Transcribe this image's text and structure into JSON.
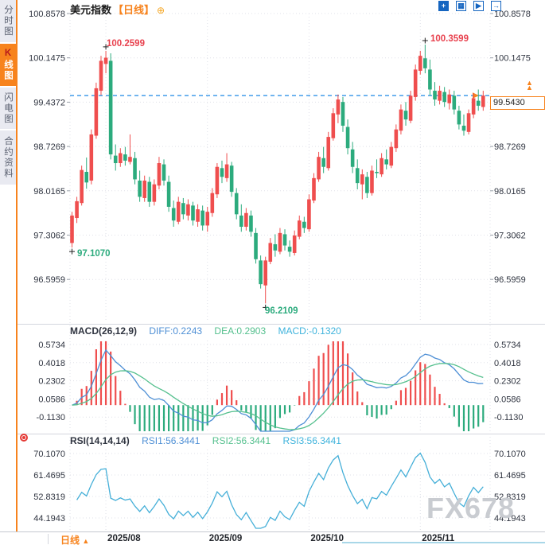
{
  "header": {
    "title": "美元指数",
    "timeframe": "【日线】",
    "add_icon": "⊕"
  },
  "sidebar": {
    "items": [
      {
        "label": "分时图",
        "active": false
      },
      {
        "label": "K线图",
        "active": true
      },
      {
        "label": "闪电图",
        "active": false
      },
      {
        "label": "合约资料",
        "active": false
      }
    ]
  },
  "toolbar": {
    "icons": [
      {
        "name": "crosshair",
        "glyph": "+"
      },
      {
        "name": "measure",
        "glyph": "▦"
      },
      {
        "name": "draw",
        "glyph": "▶"
      },
      {
        "name": "popout",
        "glyph": "→"
      }
    ]
  },
  "price_marker": {
    "value": "99.5430",
    "arrow_up": "▲"
  },
  "macd_header": {
    "name": "MACD(26,12,9)",
    "diff": "DIFF:0.2243",
    "dea": "DEA:0.2903",
    "macd": "MACD:-0.1320"
  },
  "rsi_header": {
    "name": "RSI(14,14,14)",
    "rsi1": "RSI1:56.3441",
    "rsi2": "RSI2:56.3441",
    "rsi3": "RSI3:56.3441"
  },
  "bottom": {
    "timeframe": "日线",
    "arrow": "▲"
  },
  "watermark": "FX678",
  "colors": {
    "up": "#ef4e4e",
    "down": "#2cab7d",
    "annotation_up": "#e8414e",
    "annotation_down": "#2cab7d",
    "accent_orange": "#f7831d",
    "dashed_line": "#1e88e5",
    "diff_line": "#4e8fd5",
    "dea_line": "#55c08e",
    "rsi_line": "#45afd8",
    "grid": "#dfe0e8",
    "axis_text": "#2f3440"
  },
  "chart_data": {
    "type": "candlestick",
    "title": "美元指数 日线",
    "x_labels": [
      "2025/08",
      "2025/09",
      "2025/10",
      "2025/11"
    ],
    "month_start_indices": [
      7,
      28,
      49,
      72
    ],
    "y_axis_labels": [
      100.8578,
      100.1475,
      99.4372,
      98.7269,
      98.0165,
      97.3062,
      96.5959
    ],
    "current_price": 99.543,
    "markers": [
      {
        "index": 7,
        "type": "high",
        "label": "100.2599"
      },
      {
        "index": 0,
        "type": "low",
        "label": "97.1070"
      },
      {
        "index": 40,
        "type": "low",
        "label": "96.2109"
      },
      {
        "index": 73,
        "type": "high",
        "label": "100.3599"
      }
    ],
    "ohlc": [
      [
        97.18,
        97.68,
        97.107,
        97.62
      ],
      [
        97.58,
        97.92,
        97.5,
        97.85
      ],
      [
        97.82,
        98.42,
        97.78,
        98.35
      ],
      [
        98.32,
        98.55,
        98.05,
        98.15
      ],
      [
        98.18,
        99.0,
        98.12,
        98.92
      ],
      [
        98.9,
        99.75,
        98.85,
        99.66
      ],
      [
        99.62,
        100.18,
        99.55,
        100.1
      ],
      [
        100.05,
        100.2599,
        99.9,
        100.15
      ],
      [
        100.1,
        100.22,
        98.52,
        98.6
      ],
      [
        98.58,
        98.76,
        98.34,
        98.46
      ],
      [
        98.46,
        98.7,
        98.4,
        98.62
      ],
      [
        98.6,
        98.72,
        98.42,
        98.5
      ],
      [
        98.48,
        98.92,
        98.44,
        98.56
      ],
      [
        98.54,
        98.64,
        98.12,
        98.2
      ],
      [
        98.18,
        98.34,
        97.84,
        97.92
      ],
      [
        97.9,
        98.26,
        97.84,
        98.18
      ],
      [
        98.16,
        98.24,
        97.76,
        97.84
      ],
      [
        97.84,
        98.2,
        97.78,
        98.12
      ],
      [
        98.1,
        98.56,
        98.04,
        98.46
      ],
      [
        98.44,
        98.52,
        98.1,
        98.18
      ],
      [
        98.16,
        98.26,
        97.68,
        97.76
      ],
      [
        97.74,
        97.86,
        97.44,
        97.54
      ],
      [
        97.52,
        97.92,
        97.48,
        97.84
      ],
      [
        97.82,
        97.9,
        97.56,
        97.64
      ],
      [
        97.62,
        97.88,
        97.54,
        97.8
      ],
      [
        97.78,
        97.84,
        97.46,
        97.54
      ],
      [
        97.52,
        97.8,
        97.44,
        97.72
      ],
      [
        97.7,
        97.78,
        97.38,
        97.46
      ],
      [
        97.46,
        97.76,
        97.36,
        97.68
      ],
      [
        97.66,
        98.06,
        97.6,
        97.98
      ],
      [
        97.96,
        98.46,
        97.9,
        98.4
      ],
      [
        98.38,
        98.5,
        98.14,
        98.24
      ],
      [
        98.22,
        98.62,
        98.16,
        98.44
      ],
      [
        98.42,
        98.48,
        97.92,
        98.0
      ],
      [
        97.98,
        98.06,
        97.56,
        97.64
      ],
      [
        97.62,
        97.8,
        97.36,
        97.44
      ],
      [
        97.44,
        97.74,
        97.38,
        97.66
      ],
      [
        97.62,
        97.7,
        97.28,
        97.36
      ],
      [
        97.34,
        97.42,
        96.85,
        96.92
      ],
      [
        96.9,
        96.98,
        96.45,
        96.52
      ],
      [
        96.5,
        96.96,
        96.2109,
        96.9
      ],
      [
        96.88,
        97.26,
        96.84,
        97.18
      ],
      [
        97.16,
        97.32,
        96.96,
        97.06
      ],
      [
        97.04,
        97.42,
        97.0,
        97.34
      ],
      [
        97.32,
        97.4,
        97.06,
        97.14
      ],
      [
        97.12,
        97.22,
        96.96,
        97.04
      ],
      [
        97.02,
        97.38,
        96.98,
        97.3
      ],
      [
        97.28,
        97.62,
        97.24,
        97.54
      ],
      [
        97.52,
        97.6,
        97.34,
        97.42
      ],
      [
        97.4,
        97.96,
        97.36,
        97.88
      ],
      [
        97.86,
        98.3,
        97.82,
        98.22
      ],
      [
        98.2,
        98.64,
        98.16,
        98.56
      ],
      [
        98.54,
        98.72,
        98.3,
        98.4
      ],
      [
        98.38,
        98.96,
        98.34,
        98.88
      ],
      [
        98.86,
        99.34,
        98.82,
        99.26
      ],
      [
        99.24,
        99.56,
        99.1,
        99.48
      ],
      [
        99.44,
        99.52,
        98.96,
        99.06
      ],
      [
        99.04,
        99.16,
        98.6,
        98.7
      ],
      [
        98.68,
        98.8,
        98.3,
        98.4
      ],
      [
        98.38,
        98.52,
        98.04,
        98.14
      ],
      [
        98.12,
        98.36,
        97.88,
        98.28
      ],
      [
        98.24,
        98.32,
        97.9,
        97.98
      ],
      [
        97.98,
        98.42,
        97.94,
        98.34
      ],
      [
        98.32,
        98.52,
        98.22,
        98.3
      ],
      [
        98.28,
        98.62,
        98.24,
        98.54
      ],
      [
        98.52,
        98.68,
        98.36,
        98.44
      ],
      [
        98.42,
        98.8,
        98.38,
        98.72
      ],
      [
        98.7,
        99.08,
        98.64,
        99.0
      ],
      [
        98.98,
        99.4,
        98.92,
        99.32
      ],
      [
        99.3,
        99.44,
        99.06,
        99.16
      ],
      [
        99.14,
        99.62,
        99.1,
        99.54
      ],
      [
        99.52,
        100.04,
        99.46,
        99.96
      ],
      [
        99.94,
        100.26,
        99.88,
        100.18
      ],
      [
        100.14,
        100.3599,
        99.9,
        99.98
      ],
      [
        99.96,
        100.12,
        99.54,
        99.64
      ],
      [
        99.62,
        99.76,
        99.38,
        99.48
      ],
      [
        99.46,
        99.7,
        99.4,
        99.62
      ],
      [
        99.6,
        99.68,
        99.36,
        99.44
      ],
      [
        99.42,
        99.64,
        99.32,
        99.56
      ],
      [
        99.54,
        99.62,
        99.24,
        99.32
      ],
      [
        99.3,
        99.38,
        99.0,
        99.08
      ],
      [
        99.06,
        99.24,
        98.9,
        98.98
      ],
      [
        98.96,
        99.32,
        98.92,
        99.26
      ],
      [
        99.24,
        99.58,
        99.18,
        99.5
      ],
      [
        99.46,
        99.64,
        99.3,
        99.38
      ],
      [
        99.36,
        99.62,
        99.3,
        99.543
      ]
    ],
    "macd": {
      "params": [
        26,
        12,
        9
      ],
      "diff": 0.2243,
      "dea": 0.2903,
      "macd": -0.132,
      "y_labels": [
        0.5734,
        0.4018,
        0.2302,
        0.0586,
        -0.113
      ]
    },
    "rsi": {
      "params": [
        14,
        14,
        14
      ],
      "rsi1": 56.3441,
      "rsi2": 56.3441,
      "rsi3": 56.3441,
      "y_labels": [
        70.107,
        61.4695,
        52.8319,
        44.1943
      ]
    }
  }
}
